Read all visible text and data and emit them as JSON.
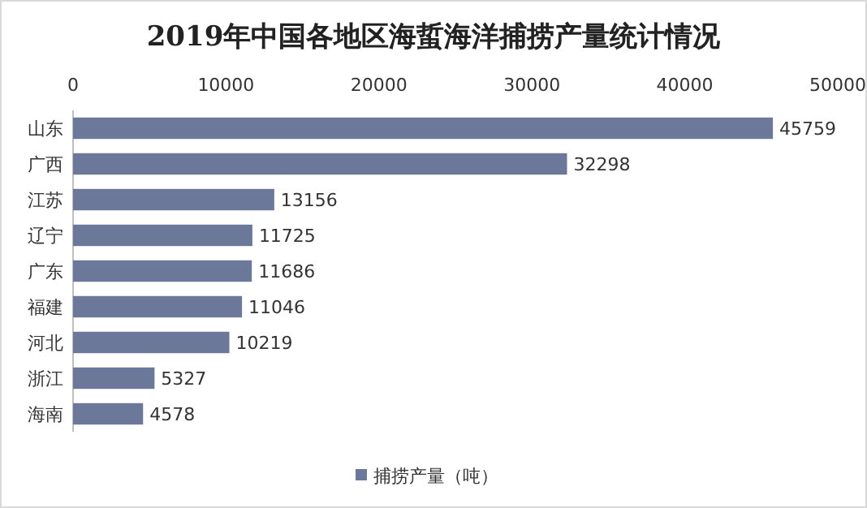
{
  "chart_data": {
    "type": "bar",
    "orientation": "horizontal",
    "title": "2019年中国各地区海蜇海洋捕捞产量统计情况",
    "categories": [
      "山东",
      "广西",
      "江苏",
      "辽宁",
      "广东",
      "福建",
      "河北",
      "浙江",
      "海南"
    ],
    "series": [
      {
        "name": "捕捞产量（吨）",
        "color": "#6b7899",
        "values": [
          45759,
          32298,
          13156,
          11725,
          11686,
          11046,
          10219,
          5327,
          4578
        ]
      }
    ],
    "xlim": [
      0,
      50000
    ],
    "xticks": [
      0,
      10000,
      20000,
      30000,
      40000,
      50000
    ],
    "data_labels": true,
    "legend": "bottom"
  }
}
